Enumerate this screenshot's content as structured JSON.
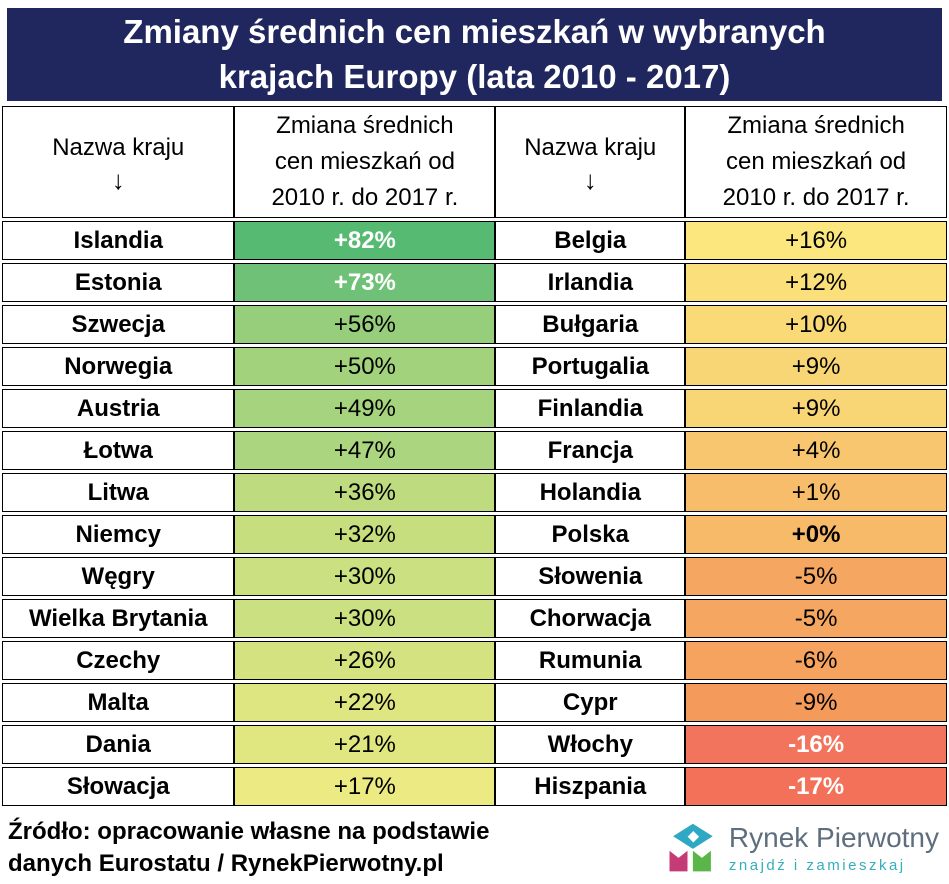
{
  "title": {
    "line1": "Zmiany średnich cen mieszkań w wybranych",
    "line2": "krajach Europy (lata 2010 - 2017)"
  },
  "table_header": {
    "country_label": "Nazwa kraju",
    "arrow": "↓",
    "change_line1": "Zmiana średnich",
    "change_line2": "cen mieszkań od",
    "change_line3": "2010 r. do 2017 r."
  },
  "colors": {
    "title_bg": "#20265E",
    "title_text": "#FFFFFF",
    "border": "#000000",
    "scale_max_green": "#57BA73",
    "scale_mid_yellow": "#FBE77D",
    "scale_min_red": "#F37159",
    "logo_teal": "#2FA8C4",
    "logo_magenta": "#C53B78",
    "logo_green": "#5AB648",
    "logo_name_color": "#5F6E7E",
    "logo_tagline_color": "#35AEBE"
  },
  "chart_data": {
    "type": "table",
    "title": "Zmiany średnich cen mieszkań w wybranych krajach Europy (lata 2010 - 2017)",
    "unit": "%",
    "columns": [
      "Nazwa kraju",
      "Zmiana średnich cen mieszkań od 2010 r. do 2017 r.",
      "Nazwa kraju",
      "Zmiana średnich cen mieszkań od 2010 r. do 2017 r."
    ],
    "rows": [
      {
        "left": {
          "country": "Islandia",
          "value": "+82%",
          "pct": 82,
          "bg": "#57BA73",
          "fg": "#FFFFFF",
          "bold": true
        },
        "right": {
          "country": "Belgia",
          "value": "+16%",
          "pct": 16,
          "bg": "#FBE77D",
          "fg": "#000000",
          "bold": false
        }
      },
      {
        "left": {
          "country": "Estonia",
          "value": "+73%",
          "pct": 73,
          "bg": "#6FC177",
          "fg": "#FFFFFF",
          "bold": true
        },
        "right": {
          "country": "Irlandia",
          "value": "+12%",
          "pct": 12,
          "bg": "#FADF7A",
          "fg": "#000000",
          "bold": false
        }
      },
      {
        "left": {
          "country": "Szwecja",
          "value": "+56%",
          "pct": 56,
          "bg": "#96CE7C",
          "fg": "#000000",
          "bold": false
        },
        "right": {
          "country": "Bułgaria",
          "value": "+10%",
          "pct": 10,
          "bg": "#F9DA77",
          "fg": "#000000",
          "bold": false
        }
      },
      {
        "left": {
          "country": "Norwegia",
          "value": "+50%",
          "pct": 50,
          "bg": "#A3D27D",
          "fg": "#000000",
          "bold": false
        },
        "right": {
          "country": "Portugalia",
          "value": "+9%",
          "pct": 9,
          "bg": "#F9D675",
          "fg": "#000000",
          "bold": false
        }
      },
      {
        "left": {
          "country": "Austria",
          "value": "+49%",
          "pct": 49,
          "bg": "#A6D37D",
          "fg": "#000000",
          "bold": false
        },
        "right": {
          "country": "Finlandia",
          "value": "+9%",
          "pct": 9,
          "bg": "#F9D675",
          "fg": "#000000",
          "bold": false
        }
      },
      {
        "left": {
          "country": "Łotwa",
          "value": "+47%",
          "pct": 47,
          "bg": "#ABD57E",
          "fg": "#000000",
          "bold": false
        },
        "right": {
          "country": "Francja",
          "value": "+4%",
          "pct": 4,
          "bg": "#F8C66F",
          "fg": "#000000",
          "bold": false
        }
      },
      {
        "left": {
          "country": "Litwa",
          "value": "+36%",
          "pct": 36,
          "bg": "#BEDB7F",
          "fg": "#000000",
          "bold": false
        },
        "right": {
          "country": "Holandia",
          "value": "+1%",
          "pct": 1,
          "bg": "#F7BD6A",
          "fg": "#000000",
          "bold": false
        }
      },
      {
        "left": {
          "country": "Niemcy",
          "value": "+32%",
          "pct": 32,
          "bg": "#C7DE7F",
          "fg": "#000000",
          "bold": false
        },
        "right": {
          "country": "Polska",
          "value": "+0%",
          "pct": 0,
          "bg": "#F7BA68",
          "fg": "#000000",
          "bold": true
        }
      },
      {
        "left": {
          "country": "Węgry",
          "value": "+30%",
          "pct": 30,
          "bg": "#CBE080",
          "fg": "#000000",
          "bold": false
        },
        "right": {
          "country": "Słowenia",
          "value": "-5%",
          "pct": -5,
          "bg": "#F5A661",
          "fg": "#000000",
          "bold": false
        }
      },
      {
        "left": {
          "country": "Wielka Brytania",
          "value": "+30%",
          "pct": 30,
          "bg": "#CBE080",
          "fg": "#000000",
          "bold": false
        },
        "right": {
          "country": "Chorwacja",
          "value": "-5%",
          "pct": -5,
          "bg": "#F5A661",
          "fg": "#000000",
          "bold": false
        }
      },
      {
        "left": {
          "country": "Czechy",
          "value": "+26%",
          "pct": 26,
          "bg": "#D4E380",
          "fg": "#000000",
          "bold": false
        },
        "right": {
          "country": "Rumunia",
          "value": "-6%",
          "pct": -6,
          "bg": "#F5A35F",
          "fg": "#000000",
          "bold": false
        }
      },
      {
        "left": {
          "country": "Malta",
          "value": "+22%",
          "pct": 22,
          "bg": "#DEE681",
          "fg": "#000000",
          "bold": false
        },
        "right": {
          "country": "Cypr",
          "value": "-9%",
          "pct": -9,
          "bg": "#F49B5B",
          "fg": "#000000",
          "bold": false
        }
      },
      {
        "left": {
          "country": "Dania",
          "value": "+21%",
          "pct": 21,
          "bg": "#E0E781",
          "fg": "#000000",
          "bold": false
        },
        "right": {
          "country": "Włochy",
          "value": "-16%",
          "pct": -16,
          "bg": "#F3745C",
          "fg": "#FFFFFF",
          "bold": true
        }
      },
      {
        "left": {
          "country": "Słowacja",
          "value": "+17%",
          "pct": 17,
          "bg": "#ECEA82",
          "fg": "#000000",
          "bold": false
        },
        "right": {
          "country": "Hiszpania",
          "value": "-17%",
          "pct": -17,
          "bg": "#F37159",
          "fg": "#FFFFFF",
          "bold": true
        }
      }
    ]
  },
  "footer": {
    "source_line1": "Źródło: opracowanie własne na podstawie",
    "source_line2": "danych Eurostatu / RynekPierwotny.pl",
    "logo_name": "Rynek Pierwotny",
    "logo_tagline": "znajdź i zamieszkaj"
  }
}
